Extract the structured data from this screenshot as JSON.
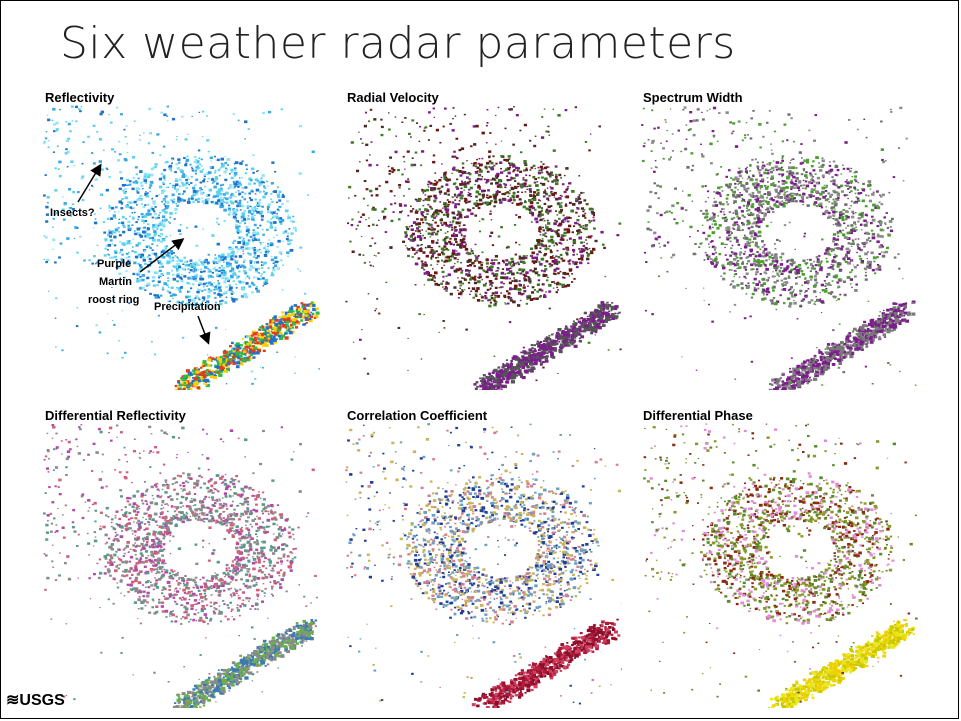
{
  "slide": {
    "title": "Six weather radar parameters",
    "logo_text": "≋USGS"
  },
  "panels": [
    {
      "label": "Reflectivity",
      "palette": [
        "#5bd3ef",
        "#3aa8e6",
        "#1f73c9",
        "#8fe4f7"
      ],
      "precip": [
        "#e53b1c",
        "#ffce00",
        "#2fb84a",
        "#1f73c9"
      ]
    },
    {
      "label": "Radial Velocity",
      "palette": [
        "#4a2a22",
        "#6e1612",
        "#7a1f8a",
        "#3d7a25"
      ],
      "precip": [
        "#555555",
        "#7a1f8a"
      ]
    },
    {
      "label": "Spectrum Width",
      "palette": [
        "#8a8a8a",
        "#6f6f6f",
        "#7a1f8a",
        "#4aa02c"
      ],
      "precip": [
        "#7a7a7a",
        "#7a1f8a"
      ]
    },
    {
      "label": "Differential Reflectivity",
      "palette": [
        "#b04aa8",
        "#d0607a",
        "#5a9a8a",
        "#8a8a8a"
      ],
      "precip": [
        "#3d7ab5",
        "#6ab04a",
        "#8a8a8a"
      ]
    },
    {
      "label": "Correlation Coefficient",
      "palette": [
        "#1f3f9a",
        "#c9b45a",
        "#d08090",
        "#6aa0c0"
      ],
      "precip": [
        "#b0183a",
        "#8a0f2a",
        "#d04060"
      ]
    },
    {
      "label": "Differential Phase",
      "palette": [
        "#8a9a2a",
        "#e08ad8",
        "#8a2a10",
        "#5a8a2a"
      ],
      "precip": [
        "#e8e81a",
        "#f0d000",
        "#c8c800"
      ]
    }
  ],
  "annotations": {
    "insects": "Insects?",
    "purple": "Purple",
    "martin": "Martin",
    "roost": "roost ring",
    "precip": "Precipitation"
  }
}
